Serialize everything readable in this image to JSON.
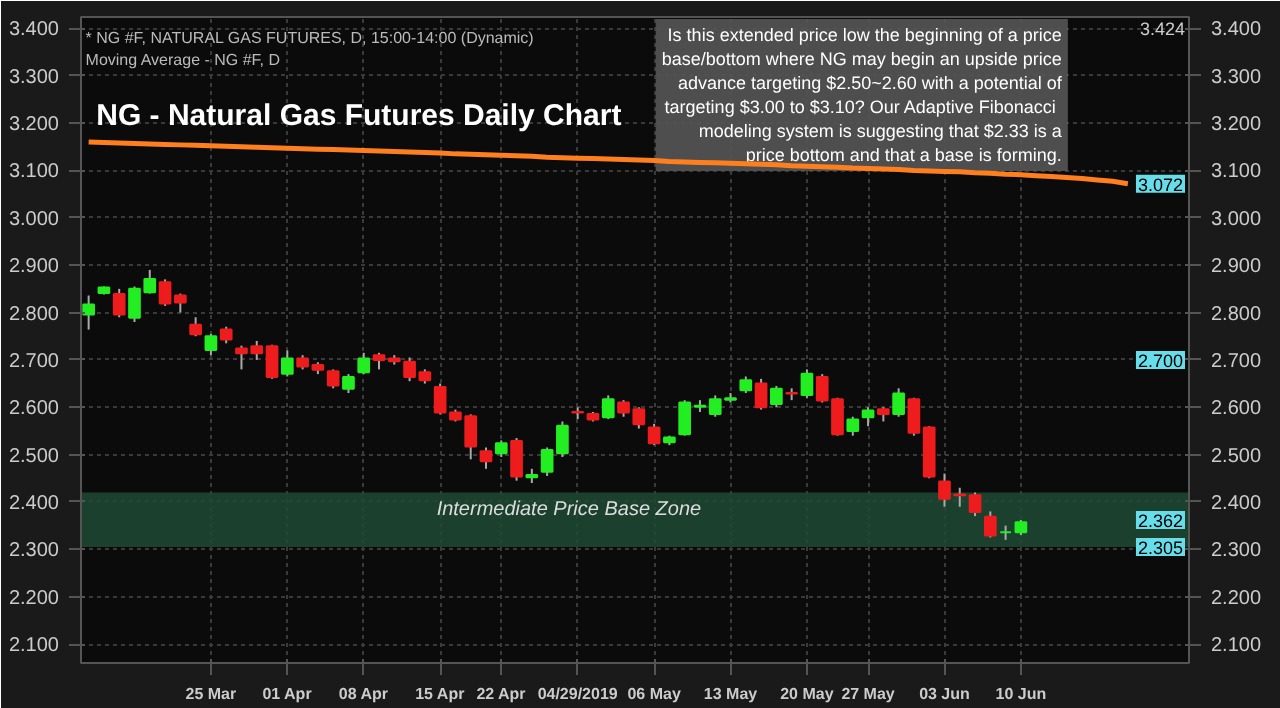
{
  "chart_data": {
    "type": "candlestick",
    "title": "NG - Natural Gas Futures Daily Chart",
    "subtitle": "* NG #F, NATURAL GAS FUTURES, D, 15:00-14:00 (Dynamic)\nMoving Average - NG #F, D",
    "categories": [
      null,
      null,
      null,
      null,
      null,
      null,
      null,
      null,
      "25 Mar",
      null,
      null,
      null,
      null,
      "01 Apr",
      null,
      null,
      null,
      null,
      "08 Apr",
      null,
      null,
      null,
      null,
      "15 Apr",
      null,
      null,
      null,
      "22 Apr",
      null,
      null,
      null,
      null,
      "04/29/2019",
      null,
      null,
      null,
      null,
      "06 May",
      null,
      null,
      null,
      null,
      "13 May",
      null,
      null,
      null,
      null,
      "20 May",
      null,
      null,
      null,
      "27 May",
      null,
      null,
      null,
      null,
      "03 Jun",
      null,
      null,
      null,
      null,
      "10 Jun",
      null,
      null,
      null,
      null,
      null,
      null,
      null
    ],
    "ohlc": [
      [
        2.796,
        2.836,
        2.764,
        2.817
      ],
      [
        2.841,
        2.855,
        2.838,
        2.853
      ],
      [
        2.839,
        2.85,
        2.79,
        2.796
      ],
      [
        2.789,
        2.855,
        2.78,
        2.85
      ],
      [
        2.843,
        2.89,
        2.84,
        2.871
      ],
      [
        2.864,
        2.87,
        2.814,
        2.819
      ],
      [
        2.836,
        2.84,
        2.8,
        2.821
      ],
      [
        2.774,
        2.79,
        2.75,
        2.754
      ],
      [
        2.721,
        2.755,
        2.71,
        2.75
      ],
      [
        2.764,
        2.77,
        2.735,
        2.743
      ],
      [
        2.724,
        2.73,
        2.68,
        2.714
      ],
      [
        2.729,
        2.74,
        2.7,
        2.714
      ],
      [
        2.729,
        2.732,
        2.66,
        2.664
      ],
      [
        2.671,
        2.72,
        2.665,
        2.703
      ],
      [
        2.703,
        2.71,
        2.68,
        2.686
      ],
      [
        2.689,
        2.695,
        2.67,
        2.679
      ],
      [
        2.676,
        2.68,
        2.64,
        2.646
      ],
      [
        2.639,
        2.67,
        2.63,
        2.664
      ],
      [
        2.674,
        2.715,
        2.67,
        2.703
      ],
      [
        2.71,
        2.715,
        2.68,
        2.7
      ],
      [
        2.703,
        2.71,
        2.69,
        2.697
      ],
      [
        2.696,
        2.705,
        2.655,
        2.664
      ],
      [
        2.674,
        2.68,
        2.65,
        2.657
      ],
      [
        2.643,
        2.65,
        2.585,
        2.589
      ],
      [
        2.589,
        2.595,
        2.57,
        2.574
      ],
      [
        2.581,
        2.585,
        2.49,
        2.517
      ],
      [
        2.507,
        2.515,
        2.47,
        2.486
      ],
      [
        2.503,
        2.53,
        2.495,
        2.524
      ],
      [
        2.529,
        2.535,
        2.445,
        2.454
      ],
      [
        2.452,
        2.47,
        2.44,
        2.457
      ],
      [
        2.464,
        2.515,
        2.455,
        2.51
      ],
      [
        2.503,
        2.57,
        2.495,
        2.561
      ],
      [
        2.59,
        2.6,
        2.575,
        2.589
      ],
      [
        2.586,
        2.59,
        2.57,
        2.574
      ],
      [
        2.579,
        2.625,
        2.575,
        2.617
      ],
      [
        2.61,
        2.615,
        2.58,
        2.589
      ],
      [
        2.596,
        2.6,
        2.555,
        2.564
      ],
      [
        2.557,
        2.565,
        2.52,
        2.524
      ],
      [
        2.526,
        2.54,
        2.52,
        2.536
      ],
      [
        2.543,
        2.615,
        2.54,
        2.61
      ],
      [
        2.601,
        2.615,
        2.59,
        2.603
      ],
      [
        2.586,
        2.625,
        2.58,
        2.617
      ],
      [
        2.616,
        2.63,
        2.61,
        2.619
      ],
      [
        2.636,
        2.665,
        2.63,
        2.657
      ],
      [
        2.65,
        2.66,
        2.595,
        2.6
      ],
      [
        2.607,
        2.645,
        2.6,
        2.639
      ],
      [
        2.63,
        2.64,
        2.615,
        2.629
      ],
      [
        2.626,
        2.68,
        2.62,
        2.671
      ],
      [
        2.664,
        2.67,
        2.61,
        2.614
      ],
      [
        2.617,
        2.62,
        2.54,
        2.543
      ],
      [
        2.55,
        2.58,
        2.54,
        2.574
      ],
      [
        2.579,
        2.6,
        2.56,
        2.593
      ],
      [
        2.596,
        2.6,
        2.57,
        2.586
      ],
      [
        2.586,
        2.64,
        2.58,
        2.629
      ],
      [
        2.617,
        2.62,
        2.54,
        2.546
      ],
      [
        2.557,
        2.56,
        2.45,
        2.454
      ],
      [
        2.443,
        2.46,
        2.39,
        2.407
      ],
      [
        2.416,
        2.43,
        2.39,
        2.414
      ],
      [
        2.414,
        2.42,
        2.37,
        2.379
      ],
      [
        2.369,
        2.38,
        2.325,
        2.329
      ],
      [
        2.336,
        2.35,
        2.32,
        2.336
      ],
      [
        2.336,
        2.362,
        2.33,
        2.357
      ],
      null,
      null,
      null,
      null,
      null,
      null,
      null
    ],
    "series": [
      {
        "type": "line",
        "color": "#ff7f1f",
        "values": [
          3.16,
          3.159,
          3.158,
          3.157,
          3.156,
          3.155,
          3.154,
          3.153,
          3.152,
          3.151,
          3.15,
          3.149,
          3.148,
          3.147,
          3.146,
          3.145,
          3.144,
          3.143,
          3.142,
          3.141,
          3.14,
          3.139,
          3.138,
          3.137,
          3.135,
          3.134,
          3.133,
          3.132,
          3.131,
          3.13,
          3.128,
          3.127,
          3.126,
          3.125,
          3.124,
          3.123,
          3.122,
          3.121,
          3.119,
          3.118,
          3.117,
          3.116,
          3.115,
          3.114,
          3.113,
          3.112,
          3.11,
          3.109,
          3.108,
          3.107,
          3.105,
          3.104,
          3.103,
          3.102,
          3.1,
          3.099,
          3.098,
          3.097,
          3.095,
          3.094,
          3.092,
          3.091,
          3.089,
          3.087,
          3.085,
          3.083,
          3.08,
          3.077,
          3.072
        ]
      }
    ],
    "ylim": [
      2.06,
      3.424
    ],
    "yticks": [
      {
        "value": 2.1,
        "label": "2.100"
      },
      {
        "value": 2.2,
        "label": "2.200"
      },
      {
        "value": 2.3,
        "label": "2.300"
      },
      {
        "value": 2.4,
        "label": "2.400"
      },
      {
        "value": 2.5,
        "label": "2.500"
      },
      {
        "value": 2.6,
        "label": "2.600"
      },
      {
        "value": 2.7,
        "label": "2.700"
      },
      {
        "value": 2.8,
        "label": "2.800"
      },
      {
        "value": 2.9,
        "label": "2.900"
      },
      {
        "value": 3.0,
        "label": "3.000"
      },
      {
        "value": 3.1,
        "label": "3.100"
      },
      {
        "value": 3.2,
        "label": "3.200"
      },
      {
        "value": 3.3,
        "label": "3.300"
      },
      {
        "value": 3.4,
        "label": "3.400"
      }
    ],
    "y2lim": [
      2.06,
      3.424
    ],
    "y2ticks": [
      {
        "value": 2.1,
        "label": "2.100"
      },
      {
        "value": 2.2,
        "label": "2.200"
      },
      {
        "value": 2.3,
        "label": "2.300"
      },
      {
        "value": 2.4,
        "label": "2.400"
      },
      {
        "value": 2.5,
        "label": "2.500"
      },
      {
        "value": 2.6,
        "label": "2.600"
      },
      {
        "value": 2.7,
        "label": "2.700"
      },
      {
        "value": 2.8,
        "label": "2.800"
      },
      {
        "value": 2.9,
        "label": "2.900"
      },
      {
        "value": 3.0,
        "label": "3.000"
      },
      {
        "value": 3.1,
        "label": "3.100"
      },
      {
        "value": 3.2,
        "label": "3.200"
      },
      {
        "value": 3.3,
        "label": "3.300"
      },
      {
        "value": 3.4,
        "label": "3.400"
      }
    ],
    "bands": [
      {
        "axis": "y",
        "from": 2.305,
        "to": 2.42,
        "label": "Intermediate Price Base Zone",
        "color": "#1e4a34"
      }
    ],
    "annotations": [
      "Is this extended price low the beginning of a price\nbase/bottom where NG may begin an upside price\nadvance targeting $2.50~2.60 with a potential of\ntargeting $3.00 to $3.10?  Our Adaptive Fibonacci\nmodeling system is suggesting that $2.33 is a\nprice bottom and that a base is forming.",
      "3.424",
      {
        "text": "3.072",
        "y": 3.072
      },
      {
        "text": "2.700",
        "y": 2.7
      },
      {
        "text": "2.362",
        "y": 2.362
      },
      {
        "text": "2.305",
        "y": 2.305
      }
    ],
    "grid": true
  }
}
